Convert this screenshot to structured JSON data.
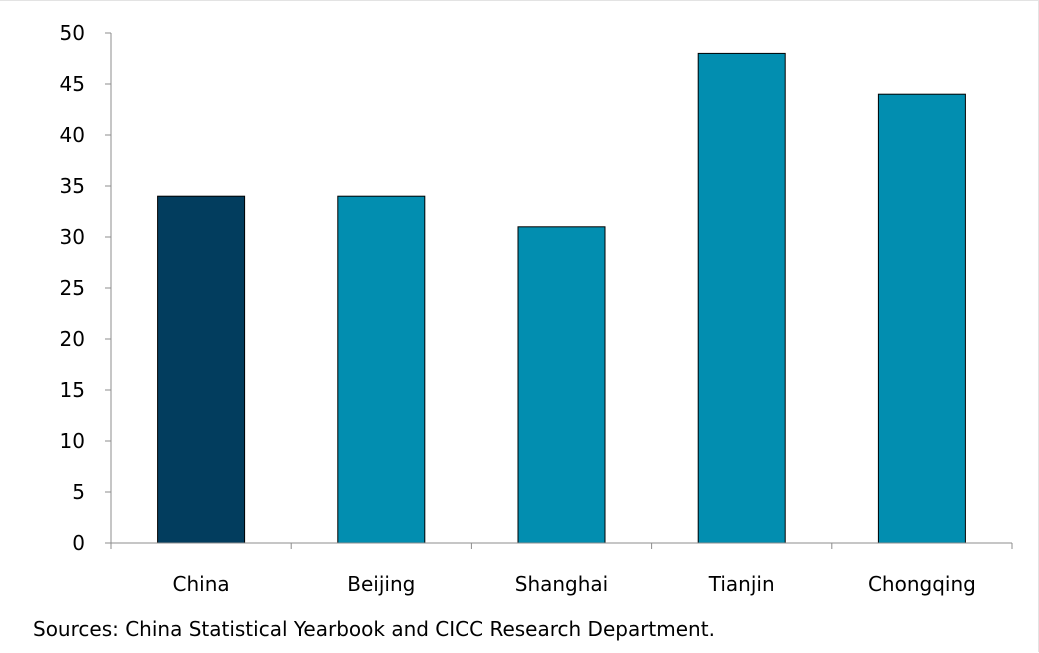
{
  "chart_data": {
    "type": "bar",
    "categories": [
      "China",
      "Beijing",
      "Shanghai",
      "Tianjin",
      "Chongqing"
    ],
    "values": [
      34,
      34,
      31,
      48,
      44
    ],
    "bar_colors": [
      "#023d5e",
      "#028eb0",
      "#028eb0",
      "#028eb0",
      "#028eb0"
    ],
    "ylim": [
      0,
      50
    ],
    "yticks": [
      0,
      5,
      10,
      15,
      20,
      25,
      30,
      35,
      40,
      45,
      50
    ],
    "grid": false,
    "title": "",
    "xlabel": "",
    "ylabel": ""
  },
  "source_note": "Sources: China Statistical Yearbook and CICC Research Department."
}
